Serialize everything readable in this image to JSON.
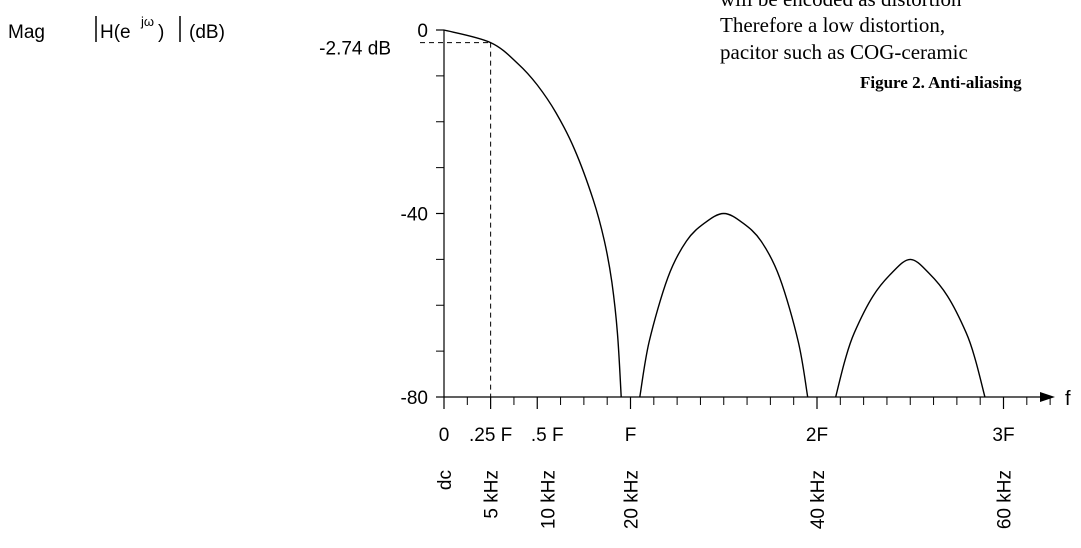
{
  "doc_text": {
    "line1": "will be encoded as distortion",
    "line2": "Therefore a low distortion,",
    "line3": "pacitor such as COG-ceramic",
    "figure_caption": "Figure 2. Anti-aliasing"
  },
  "chart_data": {
    "type": "line",
    "ylabel": {
      "mag": "Mag",
      "h": "H(e",
      "sup": "jω",
      "close": " )",
      "unit": "(dB)"
    },
    "xlabel": "f",
    "ylim": [
      -80,
      0
    ],
    "xlim": [
      0,
      3.35
    ],
    "grid": false,
    "legend": "none",
    "y_ticks": [
      {
        "value": 0,
        "label": "0"
      },
      {
        "value": -40,
        "label": "-40"
      },
      {
        "value": -80,
        "label": "-80"
      }
    ],
    "y_minor_ticks": [
      -10,
      -20,
      -30,
      -50,
      -60,
      -70
    ],
    "x_ticks": [
      {
        "value": 0,
        "label": "0",
        "freq": "dc"
      },
      {
        "value": 0.25,
        "label": ".25 F",
        "freq": "5 kHz"
      },
      {
        "value": 0.5,
        "label": ".5 F",
        "freq": "10 kHz"
      },
      {
        "value": 1,
        "label": "F",
        "freq": "20 kHz"
      },
      {
        "value": 2,
        "label": "2F",
        "freq": "40 kHz"
      },
      {
        "value": 3,
        "label": "3F",
        "freq": "60 kHz"
      }
    ],
    "x_minor_ticks": [
      0.125,
      0.375,
      0.625,
      0.75,
      0.875,
      1.125,
      1.25,
      1.375,
      1.5,
      1.625,
      1.75,
      1.875,
      2.125,
      2.25,
      2.375,
      2.5,
      2.625,
      2.75,
      2.875,
      3.125,
      3.25
    ],
    "marker": {
      "x": 0.25,
      "y": -2.74,
      "label": "-2.74 dB"
    },
    "series": [
      {
        "x": [
          0,
          0.25,
          0.4,
          0.5,
          0.6,
          0.7,
          0.8,
          0.86,
          0.9,
          0.93,
          0.95
        ],
        "y": [
          0,
          -2.74,
          -7.5,
          -12,
          -18,
          -26,
          -37,
          -46,
          -55,
          -66,
          -80
        ]
      },
      {
        "x": [
          1.05,
          1.1,
          1.2,
          1.3,
          1.4,
          1.5,
          1.6,
          1.7,
          1.8,
          1.9,
          1.95
        ],
        "y": [
          -80,
          -68,
          -54,
          -46,
          -42,
          -40,
          -42,
          -46,
          -54,
          -68,
          -80
        ]
      },
      {
        "x": [
          2.1,
          2.15,
          2.2,
          2.3,
          2.4,
          2.5,
          2.6,
          2.7,
          2.8,
          2.85,
          2.9
        ],
        "y": [
          -80,
          -72,
          -66,
          -58,
          -53,
          -50,
          -53,
          -58,
          -66,
          -72,
          -80
        ]
      }
    ]
  }
}
